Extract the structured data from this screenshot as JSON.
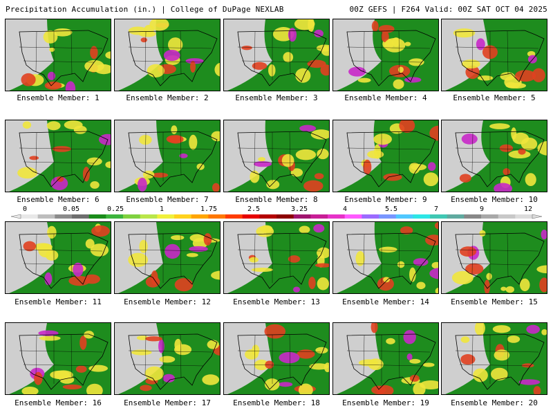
{
  "header": {
    "left": "Precipitation Accumulation (in.) | College of DuPage NEXLAB",
    "right": "00Z GEFS | F264 Valid: 00Z SAT OCT 04 2025"
  },
  "members": [
    {
      "label": "Ensemble Member: 1"
    },
    {
      "label": "Ensemble Member: 2"
    },
    {
      "label": "Ensemble Member: 3"
    },
    {
      "label": "Ensemble Member: 4"
    },
    {
      "label": "Ensemble Member: 5"
    },
    {
      "label": "Ensemble Member: 6"
    },
    {
      "label": "Ensemble Member: 7"
    },
    {
      "label": "Ensemble Member: 8"
    },
    {
      "label": "Ensemble Member: 9"
    },
    {
      "label": "Ensemble Member: 10"
    },
    {
      "label": "Ensemble Member: 11"
    },
    {
      "label": "Ensemble Member: 12"
    },
    {
      "label": "Ensemble Member: 13"
    },
    {
      "label": "Ensemble Member: 14"
    },
    {
      "label": "Ensemble Member: 15"
    },
    {
      "label": "Ensemble Member: 16"
    },
    {
      "label": "Ensemble Member: 17"
    },
    {
      "label": "Ensemble Member: 18"
    },
    {
      "label": "Ensemble Member: 19"
    },
    {
      "label": "Ensemble Member: 20"
    }
  ],
  "colorbar": {
    "labels": [
      "0",
      "0.05",
      "0.25",
      "1",
      "1.75",
      "2.5",
      "3.25",
      "4",
      "5.5",
      "7",
      "9",
      "12"
    ],
    "colors": [
      "#e8e8e8",
      "#bdbdbd",
      "#8c8c8c",
      "#6e6e6e",
      "#1a8c1a",
      "#3cb43c",
      "#7fd13f",
      "#b9e64a",
      "#f0f03c",
      "#ffd21e",
      "#ffa500",
      "#ff7800",
      "#ff3c00",
      "#e60000",
      "#b40000",
      "#8c0000",
      "#a0146e",
      "#c81e96",
      "#e632c8",
      "#ff5aff",
      "#9b6bff",
      "#7896ff",
      "#50c8ff",
      "#2de6e6",
      "#40c8b4",
      "#60aaa0",
      "#888888",
      "#a8a8a8",
      "#c8c8c8",
      "#dcdcdc"
    ]
  },
  "map_colors": {
    "dry": "#cfcfcf",
    "light": "#1e8c1e",
    "moderate": "#f0e63c",
    "heavy": "#e04020",
    "extreme": "#c828c8",
    "border": "#000000"
  }
}
